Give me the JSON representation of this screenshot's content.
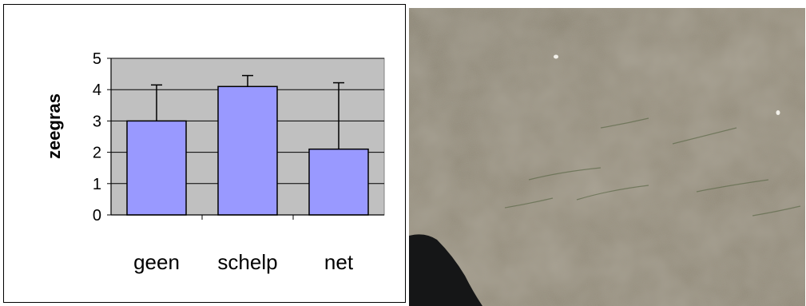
{
  "chart_data": {
    "type": "bar",
    "categories": [
      "geen",
      "schelp",
      "net"
    ],
    "values": [
      3.0,
      4.1,
      2.1
    ],
    "error_upper": [
      4.15,
      4.45,
      4.22
    ],
    "xlabel": "",
    "ylabel": "zeegras",
    "ylim": [
      0,
      5
    ],
    "yticks": [
      "0",
      "1",
      "2",
      "3",
      "4",
      "5"
    ],
    "grid": true,
    "legend": "none",
    "colors": {
      "bar": "#9999ff",
      "plot_area": "#c0c0c0",
      "bar_stroke": "#000000"
    }
  },
  "photo": {
    "subject": "tidal-flat-sand-with-seagrass"
  }
}
